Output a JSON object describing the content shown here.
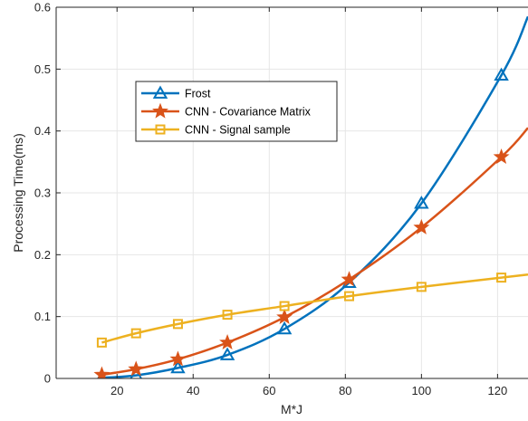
{
  "chart_data": {
    "type": "line",
    "xlabel": "M*J",
    "ylabel": "Processing Time(ms)",
    "xlim": [
      4,
      128
    ],
    "ylim": [
      0,
      0.6
    ],
    "xticks": [
      20,
      40,
      60,
      80,
      100,
      120
    ],
    "yticks": [
      0,
      0.1,
      0.2,
      0.3,
      0.4,
      0.5,
      0.6
    ],
    "grid": true,
    "legend_position": "upper-left",
    "series": [
      {
        "name": "Frost",
        "color": "#0072BD",
        "marker": "triangle",
        "x": [
          16,
          25,
          36,
          49,
          64,
          81,
          100,
          121,
          128
        ],
        "y": [
          0.001,
          0.005,
          0.017,
          0.038,
          0.08,
          0.155,
          0.283,
          0.49,
          0.585
        ],
        "marker_x": [
          16,
          25,
          36,
          49,
          64,
          81,
          100,
          121
        ]
      },
      {
        "name": "CNN - Covariance Matrix",
        "color": "#D95319",
        "marker": "star",
        "x": [
          16,
          25,
          36,
          49,
          64,
          81,
          100,
          121,
          128
        ],
        "y": [
          0.006,
          0.015,
          0.031,
          0.058,
          0.099,
          0.16,
          0.244,
          0.358,
          0.405
        ],
        "marker_x": [
          16,
          25,
          36,
          49,
          64,
          81,
          100,
          121
        ]
      },
      {
        "name": "CNN - Signal sample",
        "color": "#EDB120",
        "marker": "square",
        "x": [
          16,
          25,
          36,
          49,
          64,
          81,
          100,
          121,
          128
        ],
        "y": [
          0.058,
          0.073,
          0.088,
          0.103,
          0.117,
          0.133,
          0.148,
          0.163,
          0.168
        ],
        "marker_x": [
          16,
          25,
          36,
          49,
          64,
          81,
          100,
          121
        ]
      }
    ]
  }
}
